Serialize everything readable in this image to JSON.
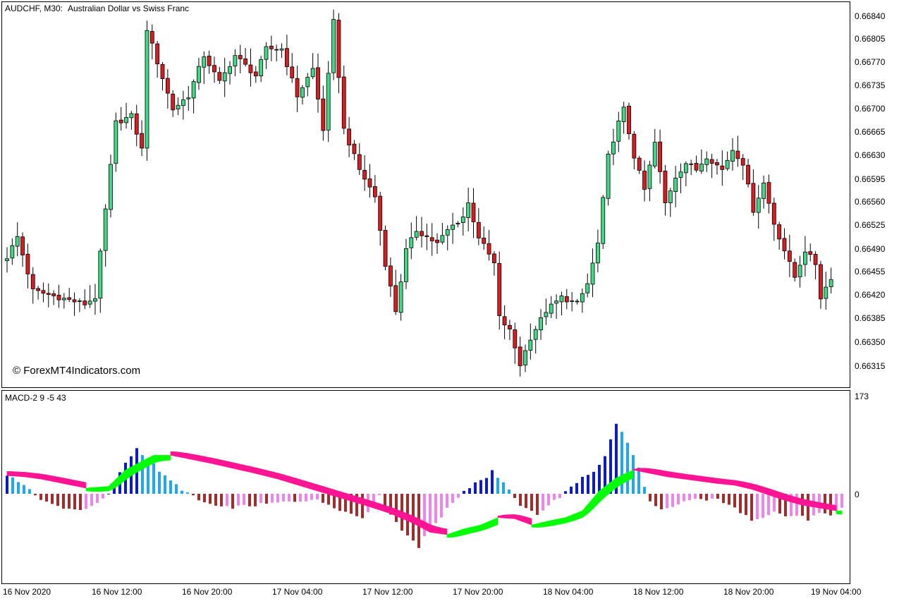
{
  "header": {
    "symbol": "AUDCHF, M30:",
    "description": "Australian Dollar vs Swiss Franc"
  },
  "watermark": "© ForexMT4Indicators.com",
  "indicator": {
    "label": "MACD-2 9 -5 43",
    "top_tick": "173",
    "zero_tick": "0"
  },
  "price_axis": {
    "ticks": [
      "0.66840",
      "0.66805",
      "0.66770",
      "0.66735",
      "0.66700",
      "0.66665",
      "0.66630",
      "0.66595",
      "0.66560",
      "0.66525",
      "0.66490",
      "0.66455",
      "0.66420",
      "0.66385",
      "0.66350",
      "0.66315"
    ]
  },
  "time_axis": {
    "labels": [
      "16 Nov 2020",
      "16 Nov 12:00",
      "16 Nov 20:00",
      "17 Nov 04:00",
      "17 Nov 12:00",
      "17 Nov 20:00",
      "18 Nov 04:00",
      "18 Nov 12:00",
      "18 Nov 20:00",
      "19 Nov 04:00"
    ]
  },
  "colors": {
    "bull": "#3ddc84",
    "bear": "#e0191f",
    "hist_pos_strong": "#0a1acf",
    "hist_pos_weak": "#1aa8ef",
    "hist_neg_strong": "#a52a2a",
    "hist_neg_weak": "#ee82ee",
    "band_up": "#00ff00",
    "band_down": "#ff1493"
  },
  "chart_data": [
    {
      "type": "candlestick",
      "symbol": "AUDCHF",
      "timeframe": "M30",
      "ylim": [
        0.663,
        0.6686
      ],
      "close_anchors": [
        [
          0,
          0.6648
        ],
        [
          2,
          0.6651
        ],
        [
          5,
          0.6643
        ],
        [
          10,
          0.6642
        ],
        [
          15,
          0.6641
        ],
        [
          17,
          0.6642
        ],
        [
          19,
          0.6655
        ],
        [
          21,
          0.6668
        ],
        [
          24,
          0.6669
        ],
        [
          26,
          0.6664
        ],
        [
          27,
          0.6682
        ],
        [
          29,
          0.6677
        ],
        [
          32,
          0.667
        ],
        [
          35,
          0.6672
        ],
        [
          38,
          0.6678
        ],
        [
          41,
          0.6674
        ],
        [
          44,
          0.6678
        ],
        [
          48,
          0.6675
        ],
        [
          50,
          0.6679
        ],
        [
          53,
          0.6679
        ],
        [
          56,
          0.6672
        ],
        [
          59,
          0.6676
        ],
        [
          61,
          0.6667
        ],
        [
          63,
          0.6683
        ],
        [
          65,
          0.6667
        ],
        [
          68,
          0.6661
        ],
        [
          71,
          0.6657
        ],
        [
          73,
          0.6647
        ],
        [
          75,
          0.664
        ],
        [
          77,
          0.6649
        ],
        [
          79,
          0.6652
        ],
        [
          83,
          0.665
        ],
        [
          85,
          0.6652
        ],
        [
          88,
          0.6654
        ],
        [
          89,
          0.6656
        ],
        [
          91,
          0.6651
        ],
        [
          94,
          0.6647
        ],
        [
          95,
          0.6639
        ],
        [
          97,
          0.6637
        ],
        [
          99,
          0.6632
        ],
        [
          101,
          0.6636
        ],
        [
          104,
          0.664
        ],
        [
          107,
          0.6642
        ],
        [
          110,
          0.6641
        ],
        [
          112,
          0.6644
        ],
        [
          114,
          0.665
        ],
        [
          116,
          0.6663
        ],
        [
          118,
          0.6668
        ],
        [
          119,
          0.667
        ],
        [
          121,
          0.6663
        ],
        [
          123,
          0.6658
        ],
        [
          125,
          0.6665
        ],
        [
          127,
          0.6656
        ],
        [
          129,
          0.666
        ],
        [
          131,
          0.6662
        ],
        [
          133,
          0.6661
        ],
        [
          135,
          0.6663
        ],
        [
          138,
          0.6661
        ],
        [
          140,
          0.6664
        ],
        [
          142,
          0.6662
        ],
        [
          144,
          0.6655
        ],
        [
          146,
          0.6659
        ],
        [
          148,
          0.6653
        ],
        [
          150,
          0.6649
        ],
        [
          152,
          0.6645
        ],
        [
          154,
          0.6649
        ],
        [
          156,
          0.6647
        ],
        [
          157,
          0.6642
        ],
        [
          159,
          0.6645
        ]
      ],
      "price_ticks": [
        0.6684,
        0.66805,
        0.6677,
        0.66735,
        0.667,
        0.66665,
        0.6663,
        0.66595,
        0.6656,
        0.66525,
        0.6649,
        0.66455,
        0.6642,
        0.66385,
        0.6635,
        0.66315
      ],
      "bar_count": 160,
      "grid": false
    },
    {
      "type": "histogram_with_signal_band",
      "title": "MACD-2 9 -5 43",
      "ylim": [
        -100,
        173
      ],
      "zero_line": 0,
      "macd_anchors": [
        [
          0,
          30
        ],
        [
          3,
          18
        ],
        [
          6,
          -12
        ],
        [
          9,
          -22
        ],
        [
          12,
          -28
        ],
        [
          15,
          -24
        ],
        [
          18,
          -2
        ],
        [
          21,
          55
        ],
        [
          23,
          80
        ],
        [
          25,
          62
        ],
        [
          28,
          30
        ],
        [
          31,
          8
        ],
        [
          34,
          -12
        ],
        [
          38,
          -25
        ],
        [
          42,
          -22
        ],
        [
          46,
          -18
        ],
        [
          50,
          -14
        ],
        [
          54,
          -10
        ],
        [
          57,
          -18
        ],
        [
          60,
          -32
        ],
        [
          63,
          -42
        ],
        [
          66,
          -5
        ],
        [
          68,
          -35
        ],
        [
          70,
          -65
        ],
        [
          72,
          -80
        ],
        [
          73,
          -95
        ],
        [
          75,
          -60
        ],
        [
          77,
          -40
        ],
        [
          79,
          -15
        ],
        [
          81,
          5
        ],
        [
          83,
          20
        ],
        [
          85,
          30
        ],
        [
          86,
          40
        ],
        [
          88,
          20
        ],
        [
          90,
          -10
        ],
        [
          92,
          -28
        ],
        [
          94,
          -35
        ],
        [
          96,
          -20
        ],
        [
          98,
          -5
        ],
        [
          100,
          10
        ],
        [
          102,
          30
        ],
        [
          104,
          40
        ],
        [
          106,
          65
        ],
        [
          108,
          125
        ],
        [
          110,
          90
        ],
        [
          112,
          45
        ],
        [
          114,
          -15
        ],
        [
          116,
          -30
        ],
        [
          118,
          -25
        ],
        [
          120,
          -15
        ],
        [
          122,
          -8
        ],
        [
          124,
          -12
        ],
        [
          126,
          -10
        ],
        [
          128,
          -18
        ],
        [
          130,
          -35
        ],
        [
          132,
          -45
        ],
        [
          134,
          -40
        ],
        [
          136,
          -30
        ],
        [
          138,
          -40
        ],
        [
          140,
          -38
        ],
        [
          142,
          -45
        ],
        [
          144,
          -35
        ],
        [
          146,
          -40
        ],
        [
          148,
          -25
        ]
      ],
      "signal_anchors": [
        [
          0,
          32
        ],
        [
          3,
          30
        ],
        [
          6,
          26
        ],
        [
          10,
          18
        ],
        [
          14,
          10
        ],
        [
          18,
          13
        ],
        [
          21,
          42
        ],
        [
          24,
          58
        ],
        [
          26,
          68
        ],
        [
          29,
          68
        ],
        [
          32,
          62
        ],
        [
          36,
          54
        ],
        [
          40,
          45
        ],
        [
          44,
          36
        ],
        [
          48,
          26
        ],
        [
          52,
          14
        ],
        [
          56,
          2
        ],
        [
          60,
          -10
        ],
        [
          64,
          -22
        ],
        [
          68,
          -35
        ],
        [
          72,
          -52
        ],
        [
          75,
          -68
        ],
        [
          78,
          -72
        ],
        [
          81,
          -62
        ],
        [
          84,
          -55
        ],
        [
          87,
          -42
        ],
        [
          90,
          -44
        ],
        [
          93,
          -55
        ],
        [
          96,
          -48
        ],
        [
          99,
          -42
        ],
        [
          102,
          -30
        ],
        [
          105,
          5
        ],
        [
          108,
          28
        ],
        [
          111,
          42
        ],
        [
          114,
          36
        ],
        [
          117,
          30
        ],
        [
          120,
          26
        ],
        [
          123,
          22
        ],
        [
          126,
          18
        ],
        [
          129,
          15
        ],
        [
          132,
          8
        ],
        [
          135,
          -2
        ],
        [
          138,
          -12
        ],
        [
          141,
          -20
        ],
        [
          144,
          -25
        ],
        [
          147,
          -30
        ]
      ]
    }
  ]
}
